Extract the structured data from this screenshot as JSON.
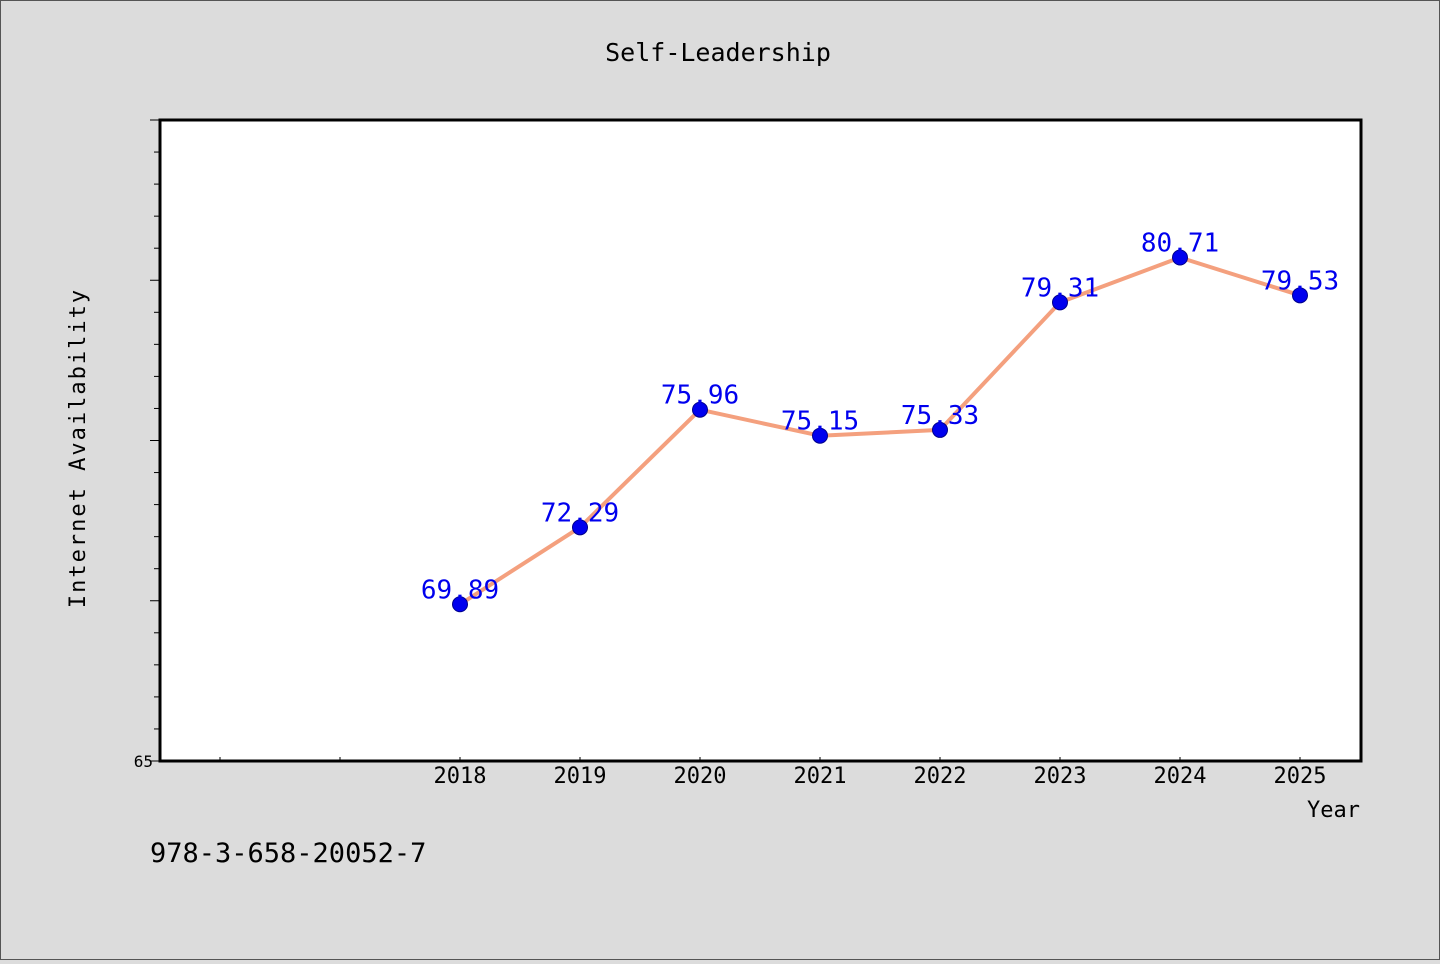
{
  "chart_data": {
    "type": "line",
    "title": "Self-Leadership",
    "xlabel": "Year",
    "ylabel": "Internet Availability",
    "categories": [
      "2018",
      "2019",
      "2020",
      "2021",
      "2022",
      "2023",
      "2024",
      "2025"
    ],
    "values": [
      69.89,
      72.29,
      75.96,
      75.15,
      75.33,
      79.31,
      80.71,
      79.53
    ],
    "data_labels": [
      "69.89",
      "72.29",
      "75.96",
      "75.15",
      "75.33",
      "79.31",
      "80.71",
      "79.53"
    ],
    "ytick_labels": [
      "65"
    ],
    "ylim": [
      65,
      85
    ],
    "grid": false,
    "colors": {
      "line": "#f4a07e",
      "marker": "#0000ee",
      "label": "#0000ee",
      "background": "#dcdcdc",
      "plot_background": "#ffffff"
    }
  },
  "footer": {
    "isbn": "978-3-658-20052-7"
  }
}
